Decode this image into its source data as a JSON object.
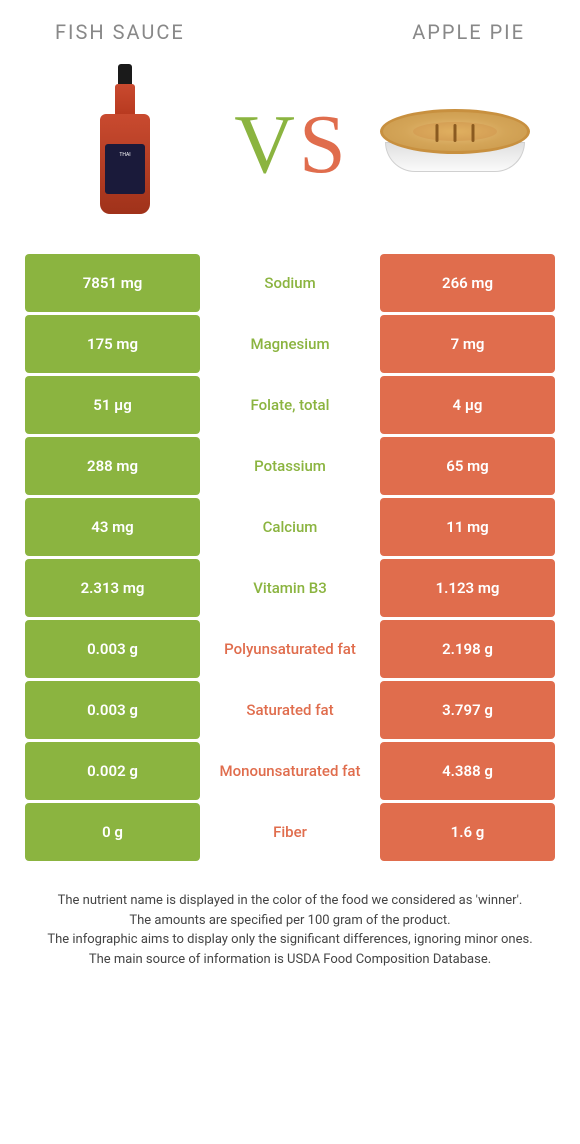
{
  "colors": {
    "left_food": "#8bb440",
    "right_food": "#e06d4d"
  },
  "left_title": "FISH SAUCE",
  "right_title": "APPLE PIE",
  "vs_label": "VS",
  "rows": [
    {
      "left": "7851 mg",
      "label": "Sodium",
      "right": "266 mg",
      "winner": "left"
    },
    {
      "left": "175 mg",
      "label": "Magnesium",
      "right": "7 mg",
      "winner": "left"
    },
    {
      "left": "51 µg",
      "label": "Folate, total",
      "right": "4 µg",
      "winner": "left"
    },
    {
      "left": "288 mg",
      "label": "Potassium",
      "right": "65 mg",
      "winner": "left"
    },
    {
      "left": "43 mg",
      "label": "Calcium",
      "right": "11 mg",
      "winner": "left"
    },
    {
      "left": "2.313 mg",
      "label": "Vitamin B3",
      "right": "1.123 mg",
      "winner": "left"
    },
    {
      "left": "0.003 g",
      "label": "Polyunsaturated fat",
      "right": "2.198 g",
      "winner": "right"
    },
    {
      "left": "0.003 g",
      "label": "Saturated fat",
      "right": "3.797 g",
      "winner": "right"
    },
    {
      "left": "0.002 g",
      "label": "Monounsaturated fat",
      "right": "4.388 g",
      "winner": "right"
    },
    {
      "left": "0 g",
      "label": "Fiber",
      "right": "1.6 g",
      "winner": "right"
    }
  ],
  "footnotes": [
    "The nutrient name is displayed in the color of the food we considered as 'winner'.",
    "The amounts are specified per 100 gram of the product.",
    "The infographic aims to display only the significant differences, ignoring minor ones.",
    "The main source of information is USDA Food Composition Database."
  ]
}
